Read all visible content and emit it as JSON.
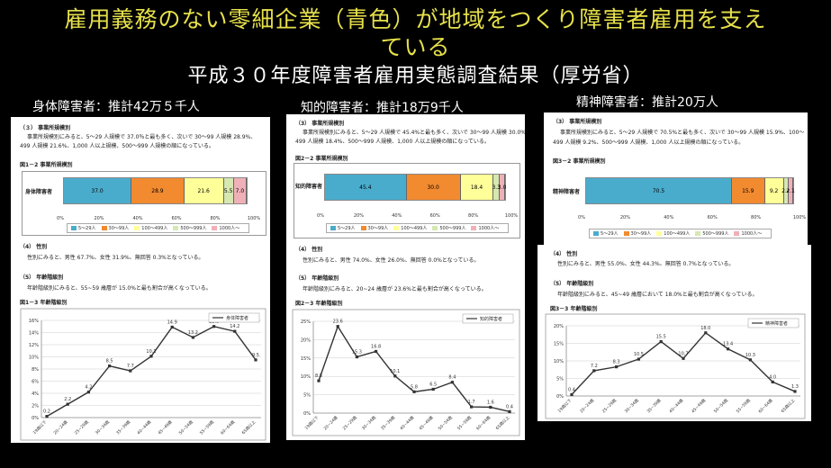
{
  "header": {
    "title_line1": "雇用義務のない零細企業（青色）が地域をつくり障害者雇用を支え",
    "title_line2": "ている",
    "subtitle": "平成３０年度障害者雇用実態調査結果（厚労省）"
  },
  "colors": {
    "band_5_29": "#4aaccc",
    "band_30_99": "#f28a30",
    "band_100_499": "#ffff99",
    "band_500_999": "#d6e8b0",
    "band_1000": "#f0b0b8",
    "line": "#333333"
  },
  "panels": [
    {
      "caption": "身体障害者：推計42万５千人",
      "sec3_heading": "（３） 事業所規模別",
      "sec3_text1": "事業所規模別にみると、5～29 人規模で 37.0％と最も多く、次いで 30～99 人規模 28.9%、",
      "sec3_text2": "499 人規模 21.6%、1,000 人以上規模、500～999 人規模の順になっている。",
      "fig_a_label": "図1－2 事業所規模別",
      "bar_row_label": "身体障害者",
      "sec4_heading": "（4） 性別",
      "sec4_text": "性別にみると、男性 67.7%、女性 31.9%、無回答 0.3%となっている。",
      "sec5_heading": "（5） 年齢階級別",
      "sec5_text": "年齢階級別にみると、55~59 歳層が 15.0%と最も割合が高くなっている。",
      "fig_b_label": "図1－3 年齢階級別",
      "line_legend": "身体障害者"
    },
    {
      "caption": "知的障害者：推計18万9千人",
      "sec3_heading": "（3） 事業所規模別",
      "sec3_text1": "事業所規模別にみると、5～29 人規模で 45.4%と最も多く、次いで 30～99 人規模 30.0%、100～",
      "sec3_text2": "499 人規模 18.4%、500～999 人規模、1,000 人以上規模の順になっている。",
      "fig_a_label": "図2－2 事業所規模別",
      "bar_row_label": "知的障害者",
      "sec4_heading": "（4） 性別",
      "sec4_text": "性別にみると、男性 74.0%、女性 26.0%、無回答 0.0%となっている。",
      "sec5_heading": "（5） 年齢階級別",
      "sec5_text": "年齢階級別にみると、20~24 歳層が 23.6%と最も割合が高くなっている。",
      "fig_b_label": "図2－3 年齢階級別",
      "line_legend": "知的障害者"
    },
    {
      "caption": "精神障害者：推計20万人",
      "sec3_heading": "（3） 事業所規模別",
      "sec3_text1": "事業所規模別にみると、5～29 人規模で 70.5%と最も多く、次いで 30～99 人規模 15.9%、100～",
      "sec3_text2": "499 人規模 9.2%、500～999 人規模、1,000 人以上規模の順になっている。",
      "fig_a_label": "図3－2 事業所規模別",
      "bar_row_label": "精神障害者",
      "sec4_heading": "（4） 性別",
      "sec4_text": "性別にみると、男性 55.0%、女性 44.3%、無回答 0.7%となっている。",
      "sec5_heading": "（5） 年齢階級別",
      "sec5_text": "年齢階級別にみると、45~49 歳層において 18.0%と最も割合が高くなっている。",
      "fig_b_label": "図3－3 年齢階級別",
      "line_legend": "精神障害者"
    }
  ],
  "chart_data": [
    {
      "type": "bar",
      "title": "図1－2 事業所規模別",
      "categories": [
        "身体障害者"
      ],
      "series": [
        {
          "name": "5～29人",
          "values": [
            37.0
          ]
        },
        {
          "name": "30～99人",
          "values": [
            28.9
          ]
        },
        {
          "name": "100～499人",
          "values": [
            21.6
          ]
        },
        {
          "name": "500～999人",
          "values": [
            5.5
          ]
        },
        {
          "name": "1000人～",
          "values": [
            7.0
          ]
        }
      ],
      "xlim": [
        0,
        100
      ],
      "ticks": [
        "0%",
        "20%",
        "40%",
        "60%",
        "80%",
        "100%"
      ],
      "stacked": true
    },
    {
      "type": "bar",
      "title": "図2－2 事業所規模別",
      "categories": [
        "知的障害者"
      ],
      "series": [
        {
          "name": "5～29人",
          "values": [
            45.4
          ]
        },
        {
          "name": "30～99人",
          "values": [
            30.0
          ]
        },
        {
          "name": "100～499人",
          "values": [
            18.4
          ]
        },
        {
          "name": "500～999人",
          "values": [
            3.3
          ]
        },
        {
          "name": "1000人～",
          "values": [
            3.0
          ]
        }
      ],
      "xlim": [
        0,
        100
      ],
      "ticks": [
        "0%",
        "20%",
        "40%",
        "60%",
        "80%",
        "100%"
      ],
      "stacked": true
    },
    {
      "type": "bar",
      "title": "図3－2 事業所規模別",
      "categories": [
        "精神障害者"
      ],
      "series": [
        {
          "name": "5～29人",
          "values": [
            70.5
          ]
        },
        {
          "name": "30～99人",
          "values": [
            15.9
          ]
        },
        {
          "name": "100～499人",
          "values": [
            9.2
          ]
        },
        {
          "name": "500～999人",
          "values": [
            2.4
          ]
        },
        {
          "name": "1000人～",
          "values": [
            2.1
          ]
        }
      ],
      "xlim": [
        0,
        100
      ],
      "ticks": [
        "0%",
        "20%",
        "40%",
        "60%",
        "80%",
        "100%"
      ],
      "stacked": true
    },
    {
      "type": "line",
      "title": "図1－3 年齢階級別",
      "x": [
        "19歳以下",
        "20~24歳",
        "25~29歳",
        "30~34歳",
        "35~39歳",
        "40~44歳",
        "45~49歳",
        "50~54歳",
        "55~59歳",
        "60~64歳",
        "65歳以上"
      ],
      "series": [
        {
          "name": "身体障害者",
          "values": [
            0.2,
            2.2,
            4.2,
            8.5,
            7.7,
            10.1,
            14.9,
            13.2,
            15.0,
            14.2,
            9.5
          ]
        }
      ],
      "ylim": [
        0,
        16
      ],
      "yticks": [
        "0%",
        "2%",
        "4%",
        "6%",
        "8%",
        "10%",
        "12%",
        "14%",
        "16%"
      ],
      "legend": "top-right",
      "grid": true
    },
    {
      "type": "line",
      "title": "図2－3 年齢階級別",
      "x": [
        "19歳以下",
        "20~24歳",
        "25~29歳",
        "30~34歳",
        "35~39歳",
        "40~44歳",
        "45~49歳",
        "50~54歳",
        "55~59歳",
        "60~64歳",
        "65歳以上"
      ],
      "series": [
        {
          "name": "知的障害者",
          "values": [
            8.8,
            23.6,
            15.3,
            16.8,
            10.1,
            5.8,
            6.5,
            8.4,
            1.7,
            1.6,
            0.4
          ]
        }
      ],
      "ylim": [
        0,
        25
      ],
      "yticks": [
        "0%",
        "5%",
        "10%",
        "15%",
        "20%",
        "25%"
      ],
      "legend": "top-right",
      "grid": true
    },
    {
      "type": "line",
      "title": "図3－3 年齢階級別",
      "x": [
        "19歳以下",
        "20~24歳",
        "25~29歳",
        "30~34歳",
        "35~39歳",
        "40~44歳",
        "45~49歳",
        "50~54歳",
        "55~59歳",
        "60~64歳",
        "65歳以上"
      ],
      "series": [
        {
          "name": "精神障害者",
          "values": [
            0.4,
            7.2,
            8.3,
            10.5,
            15.5,
            10.7,
            18.0,
            13.4,
            10.3,
            4.0,
            1.3
          ]
        }
      ],
      "ylim": [
        0,
        20
      ],
      "yticks": [
        "0%",
        "5%",
        "10%",
        "15%",
        "20%"
      ],
      "legend": "top-right",
      "grid": true
    }
  ]
}
